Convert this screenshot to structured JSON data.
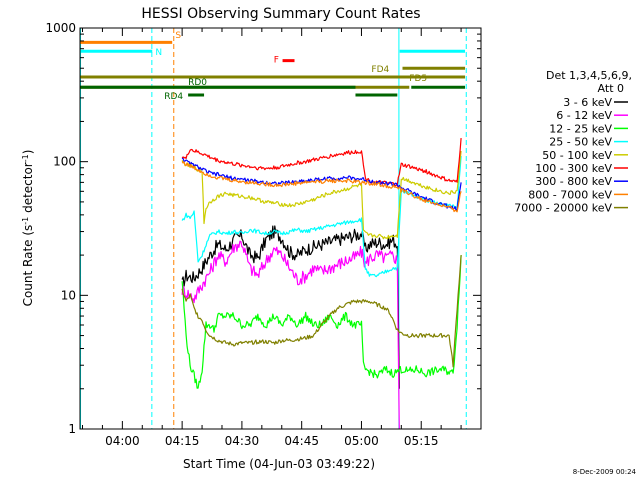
{
  "chart_data": {
    "type": "line",
    "title": "HESSI Observing Summary Count Rates",
    "xlabel": "Start Time (04-Jun-03 03:49:22)",
    "ylabel_main": "Count Rate (s",
    "ylabel_sup1": "-1",
    "ylabel_mid": " detector",
    "ylabel_sup2": "-1",
    "ylabel_end": ")",
    "yscale": "log",
    "ylim": [
      1,
      1000
    ],
    "xlim_minutes": [
      229.37,
      330.0
    ],
    "x_ticks": [
      {
        "t": 240,
        "label": "04:00"
      },
      {
        "t": 255,
        "label": "04:15"
      },
      {
        "t": 270,
        "label": "04:30"
      },
      {
        "t": 285,
        "label": "04:45"
      },
      {
        "t": 300,
        "label": "05:00"
      },
      {
        "t": 315,
        "label": "05:15"
      }
    ],
    "y_ticks": [
      {
        "v": 1,
        "label": "1"
      },
      {
        "v": 10,
        "label": "10"
      },
      {
        "v": 100,
        "label": "100"
      },
      {
        "v": 1000,
        "label": "1000"
      }
    ],
    "legend_title": [
      "Det 1,3,4,5,6,9,",
      "Att 0"
    ],
    "legend_position": "right",
    "footer": "8-Dec-2009 00:24",
    "series": [
      {
        "name": "3 - 6 keV",
        "color": "#000000",
        "x": [
          255,
          256,
          258,
          260,
          262,
          264,
          266,
          268,
          270,
          272,
          274,
          276,
          278,
          280,
          282,
          284,
          286,
          288,
          290,
          292,
          294,
          296,
          298,
          300,
          301,
          302,
          304,
          306,
          308,
          309,
          309.5
        ],
        "y": [
          12,
          14,
          13.5,
          16,
          20,
          24,
          22,
          26,
          28,
          20,
          19,
          26,
          30,
          27,
          21,
          20,
          22,
          23,
          24,
          25,
          26,
          27,
          28,
          29,
          22,
          24,
          25,
          24,
          26,
          24,
          2
        ]
      },
      {
        "name": "6 - 12 keV",
        "color": "#ff00ff",
        "x": [
          255,
          256,
          258,
          260,
          262,
          264,
          266,
          268,
          270,
          272,
          274,
          276,
          278,
          280,
          282,
          284,
          286,
          288,
          290,
          292,
          294,
          296,
          298,
          300,
          301,
          302,
          304,
          306,
          308,
          309,
          309.5
        ],
        "y": [
          11,
          10.5,
          9.5,
          12,
          15,
          20,
          18,
          23,
          25,
          16,
          14,
          18,
          22,
          20,
          16,
          13,
          14,
          16,
          15,
          16,
          17,
          18,
          19,
          21,
          17,
          19,
          20,
          19,
          20,
          18,
          1
        ]
      },
      {
        "name": "12 - 25 keV",
        "color": "#00ff00",
        "x": [
          255,
          256,
          257,
          258,
          259,
          260,
          261,
          262,
          263,
          264,
          266,
          268,
          270,
          272,
          274,
          276,
          278,
          280,
          282,
          284,
          286,
          288,
          290,
          292,
          294,
          296,
          298,
          300,
          300.5,
          301,
          304,
          306,
          308,
          310,
          312,
          314,
          316,
          318,
          320,
          322,
          323,
          324,
          325
        ],
        "y": [
          13,
          5,
          3,
          2.5,
          2,
          2.8,
          6,
          6,
          5.5,
          7,
          7,
          7,
          6,
          6,
          7,
          6,
          7,
          6,
          7,
          6,
          7,
          6,
          6,
          7,
          6,
          7,
          6,
          6,
          3,
          2.8,
          2.5,
          2.8,
          2.6,
          2.8,
          2.7,
          2.8,
          2.6,
          2.7,
          2.8,
          2.7,
          2.6,
          6,
          20
        ]
      },
      {
        "name": "25 - 50 keV",
        "color": "#00ffff",
        "x": [
          255,
          256,
          257,
          258,
          259,
          260,
          261,
          262,
          264,
          266,
          268,
          270,
          272,
          274,
          276,
          278,
          280,
          282,
          284,
          286,
          288,
          290,
          292,
          294,
          296,
          298,
          300,
          301,
          302,
          304,
          306,
          308,
          309,
          310,
          312,
          314,
          316,
          318,
          320,
          322,
          324,
          325
        ],
        "y": [
          36,
          40,
          38,
          42,
          18,
          20,
          24,
          28,
          30,
          29,
          30,
          29,
          31,
          30,
          29,
          30,
          29,
          30,
          31,
          30,
          31,
          32,
          33,
          34,
          35,
          36,
          37,
          16,
          14,
          14,
          15,
          16,
          16,
          60,
          58,
          55,
          52,
          50,
          48,
          47,
          45,
          110
        ]
      },
      {
        "name": "50 - 100 keV",
        "color": "#cccc00",
        "x": [
          255,
          256,
          258,
          260,
          260.5,
          261,
          262,
          264,
          266,
          268,
          270,
          272,
          274,
          276,
          278,
          280,
          282,
          284,
          286,
          288,
          290,
          292,
          294,
          296,
          298,
          300,
          300.5,
          301,
          302,
          304,
          306,
          308,
          309,
          310,
          312,
          314,
          316,
          318,
          320,
          322,
          324,
          325
        ],
        "y": [
          100,
          95,
          90,
          85,
          35,
          45,
          50,
          55,
          58,
          56,
          55,
          54,
          52,
          50,
          49,
          48,
          47,
          48,
          50,
          52,
          55,
          58,
          60,
          62,
          65,
          67,
          30,
          29,
          28,
          28,
          27,
          28,
          28,
          75,
          72,
          68,
          65,
          62,
          60,
          58,
          60,
          120
        ]
      },
      {
        "name": "100 - 300 keV",
        "color": "#ff0000",
        "x": [
          255,
          256,
          257,
          258,
          260,
          262,
          264,
          266,
          268,
          270,
          272,
          274,
          276,
          278,
          280,
          282,
          284,
          286,
          288,
          290,
          292,
          294,
          296,
          298,
          300,
          301,
          302,
          304,
          306,
          308,
          309,
          310,
          312,
          314,
          316,
          318,
          320,
          322,
          324,
          325
        ],
        "y": [
          110,
          105,
          125,
          120,
          115,
          108,
          102,
          99,
          96,
          94,
          92,
          90,
          89,
          90,
          92,
          95,
          98,
          100,
          103,
          106,
          110,
          113,
          116,
          118,
          120,
          75,
          72,
          70,
          69,
          68,
          68,
          95,
          92,
          88,
          85,
          80,
          76,
          72,
          70,
          150
        ]
      },
      {
        "name": "300 - 800 keV",
        "color": "#0000ff",
        "x": [
          255,
          256,
          258,
          260,
          262,
          264,
          266,
          268,
          270,
          272,
          274,
          276,
          278,
          280,
          282,
          284,
          286,
          288,
          290,
          292,
          294,
          296,
          298,
          300,
          302,
          304,
          306,
          308,
          309,
          310,
          312,
          314,
          316,
          318,
          320,
          322,
          324,
          325
        ],
        "y": [
          108,
          100,
          94,
          88,
          82,
          80,
          77,
          75,
          74,
          72,
          71,
          70,
          69,
          69,
          70,
          71,
          72,
          73,
          74,
          75,
          75,
          76,
          75,
          74,
          72,
          70,
          69,
          68,
          67,
          64,
          60,
          56,
          53,
          50,
          48,
          46,
          44,
          70
        ]
      },
      {
        "name": "800 - 7000 keV",
        "color": "#ff8000",
        "x": [
          255,
          256,
          258,
          260,
          262,
          264,
          266,
          268,
          270,
          272,
          274,
          276,
          278,
          280,
          282,
          284,
          286,
          288,
          290,
          292,
          294,
          296,
          298,
          300,
          302,
          304,
          306,
          308,
          309,
          310,
          312,
          314,
          316,
          318,
          320,
          322,
          324,
          325
        ],
        "y": [
          100,
          96,
          90,
          84,
          79,
          76,
          74,
          72,
          71,
          70,
          69,
          68,
          67,
          67,
          68,
          69,
          70,
          71,
          71,
          72,
          72,
          72,
          71,
          70,
          69,
          68,
          66,
          65,
          64,
          61,
          58,
          54,
          51,
          49,
          47,
          45,
          43,
          60
        ]
      },
      {
        "name": "7000 - 20000 keV",
        "color": "#808000",
        "x": [
          255,
          256,
          257,
          258,
          259,
          260,
          261,
          262,
          264,
          266,
          268,
          270,
          272,
          274,
          276,
          278,
          280,
          282,
          284,
          286,
          288,
          290,
          292,
          294,
          296,
          298,
          300,
          302,
          304,
          306,
          307,
          308,
          309,
          310,
          312,
          314,
          316,
          318,
          320,
          322,
          323,
          324,
          325
        ],
        "y": [
          11,
          9,
          10,
          8,
          7,
          6.5,
          5.5,
          5,
          4.6,
          4.4,
          4.3,
          4.4,
          4.4,
          4.5,
          4.5,
          4.4,
          4.6,
          4.6,
          4.7,
          4.8,
          5,
          6,
          7,
          8,
          8.5,
          9,
          9,
          9,
          8.5,
          8,
          7.5,
          6.5,
          5.5,
          5.2,
          5,
          5,
          5,
          5,
          5,
          5,
          3,
          8,
          20
        ]
      }
    ],
    "annotations": [
      {
        "text": "S",
        "color": "#ff8000",
        "x0": 229.5,
        "x1": 252.5,
        "y": 780,
        "style": "bar",
        "label_x": 253.3,
        "label_y": 900
      },
      {
        "text": "N",
        "color": "#00ffff",
        "x0": 229.5,
        "x1": 247.5,
        "y": 670,
        "style": "bar",
        "label_x": 248.3,
        "label_y": 670
      },
      {
        "text": "F",
        "color": "#ff0000",
        "x0": 280.2,
        "x1": 283.2,
        "y": 570,
        "style": "bar",
        "label_x": 278.0,
        "label_y": 590
      },
      {
        "text": "",
        "color": "#00ffff",
        "x0": 309.6,
        "x1": 326,
        "y": 670,
        "style": "bar",
        "label_x": 0,
        "label_y": 0
      },
      {
        "text": "FD4",
        "color": "#808000",
        "x0": 229.5,
        "x1": 326,
        "y": 430,
        "style": "thin",
        "label_x": 302.5,
        "label_y": 500
      },
      {
        "text": "",
        "color": "#808000",
        "x0": 310.3,
        "x1": 326,
        "y": 500,
        "style": "thin",
        "label_x": 0,
        "label_y": 0
      },
      {
        "text": "FD5",
        "color": "#808000",
        "x0": 229.5,
        "x1": 312,
        "y": 360,
        "style": "thin",
        "label_x": 312,
        "label_y": 430
      },
      {
        "text": "RD0",
        "color": "#006400",
        "x0": 229.5,
        "x1": 298.5,
        "y": 360,
        "style": "thin",
        "label_x": 256.5,
        "label_y": 400
      },
      {
        "text": "",
        "color": "#006400",
        "x0": 312.5,
        "x1": 326,
        "y": 360,
        "style": "thin",
        "label_x": 0,
        "label_y": 0
      },
      {
        "text": "RD4",
        "color": "#006400",
        "x0": 256.5,
        "x1": 260.5,
        "y": 315,
        "style": "thin",
        "label_x": 250.5,
        "label_y": 315
      },
      {
        "text": "",
        "color": "#006400",
        "x0": 298.5,
        "x1": 309,
        "y": 315,
        "style": "thin",
        "label_x": 0,
        "label_y": 0
      }
    ],
    "vlines": [
      {
        "t": 247.4,
        "color": "#00ffff",
        "dash": true
      },
      {
        "t": 252.9,
        "color": "#ff8000",
        "dash": true
      },
      {
        "t": 309.4,
        "color": "#00ffff",
        "dash": false
      },
      {
        "t": 326.3,
        "color": "#00ffff",
        "dash": true
      },
      {
        "t": 229.5,
        "color": "#00ffff",
        "dash": false
      }
    ]
  }
}
